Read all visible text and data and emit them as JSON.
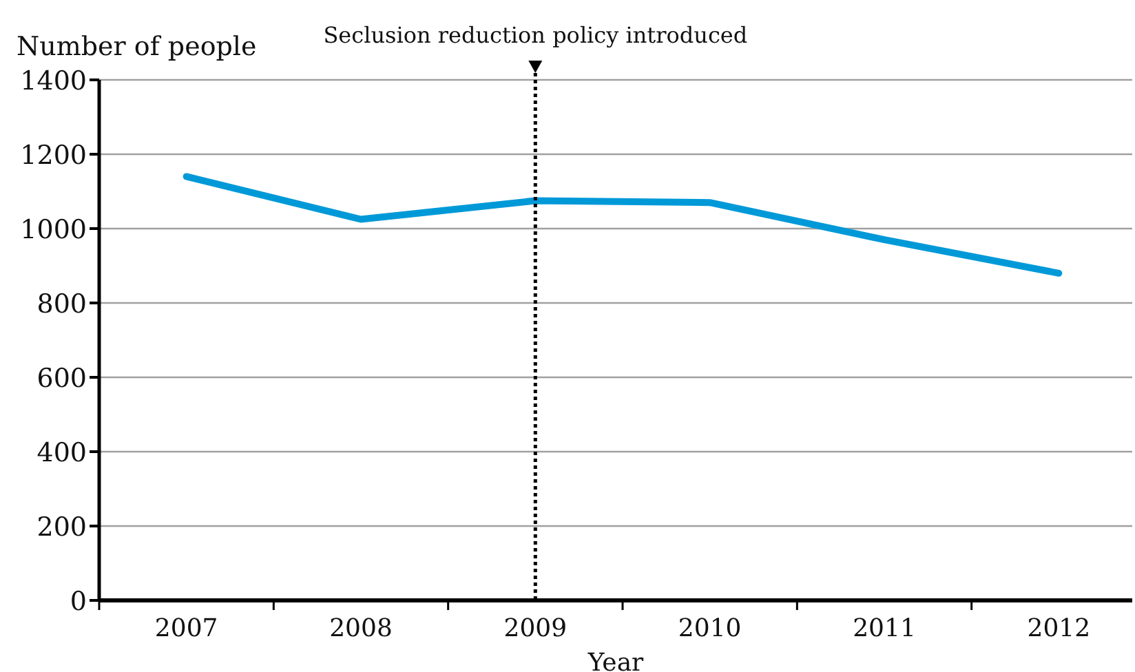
{
  "chart_data": {
    "type": "line",
    "ylabel": "Number of people",
    "xlabel": "Year",
    "categories": [
      "2007",
      "2008",
      "2009",
      "2010",
      "2011",
      "2012"
    ],
    "series": [
      {
        "color": "#0099d8",
        "values": [
          1140,
          1025,
          1075,
          1070,
          970,
          880
        ]
      }
    ],
    "ylim": [
      0,
      1400
    ],
    "yticks": [
      0,
      200,
      400,
      600,
      800,
      1000,
      1200,
      1400
    ],
    "grid": "y",
    "marker": "none",
    "line_style": "solid",
    "ref_lines": [
      {
        "axis": "x",
        "value": "2009",
        "label": "Seclusion reduction policy introduced",
        "line_style": "dotted",
        "color": "#000000"
      }
    ]
  }
}
